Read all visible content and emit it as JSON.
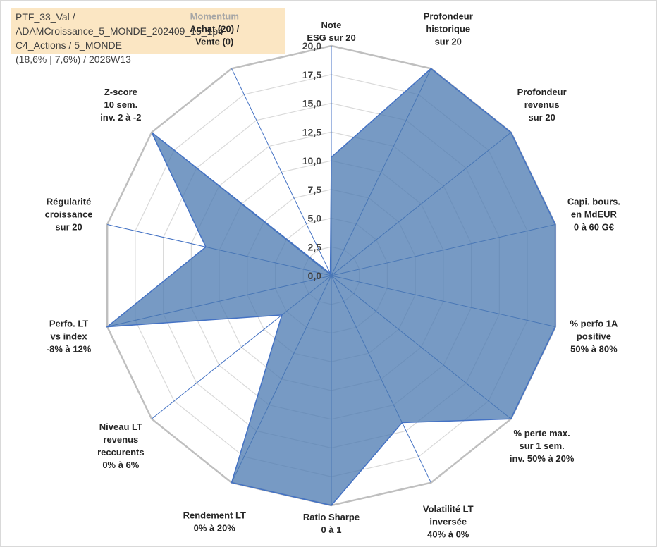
{
  "info_box": {
    "line1": "PTF_33_Val / ADAMCroissance_5_MONDE_202409_15_1p4",
    "line2": "C4_Actions / 5_MONDE",
    "line3": "(18,6% | 7,6%) / 2026W13"
  },
  "chart_data": {
    "type": "radar",
    "rmin": 0,
    "rmax": 20,
    "tick_values": [
      0,
      2.5,
      5,
      7.5,
      10,
      12.5,
      15,
      17.5,
      20
    ],
    "tick_labels": [
      "0,0",
      "2,5",
      "5,0",
      "7,5",
      "10,0",
      "12,5",
      "15,0",
      "17,5",
      "20,0"
    ],
    "categories": [
      {
        "lines": [
          "Note",
          "ESG sur 20"
        ]
      },
      {
        "lines": [
          "Profondeur",
          "historique",
          "sur 20"
        ]
      },
      {
        "lines": [
          "Profondeur",
          "revenus",
          "sur 20"
        ]
      },
      {
        "lines": [
          "Capi. bours.",
          "en MdEUR",
          "0 à 60 G€"
        ]
      },
      {
        "lines": [
          "% perfo 1A",
          "positive",
          "50% à 80%"
        ]
      },
      {
        "lines": [
          "% perte max.",
          "sur 1 sem.",
          "inv. 50% à 20%"
        ]
      },
      {
        "lines": [
          "Volatilité LT",
          "inversée",
          "40% à 0%"
        ]
      },
      {
        "lines": [
          "Ratio Sharpe",
          "0 à 1"
        ]
      },
      {
        "lines": [
          "Rendement LT",
          "0% à 20%"
        ]
      },
      {
        "lines": [
          "Niveau LT",
          "revenus",
          "reccurents",
          "0% à 6%"
        ]
      },
      {
        "lines": [
          "Perfo. LT",
          "vs index",
          "-8% à 12%"
        ]
      },
      {
        "lines": [
          "Régularité",
          "croissance",
          "sur 20"
        ]
      },
      {
        "lines": [
          "Z-score",
          "10 sem.",
          "inv. 2 à -2"
        ]
      },
      {
        "lines": [
          "Momentum",
          "Achat (20) /",
          "Vente (0)"
        ],
        "first_line_color": "#a6a6a6"
      }
    ],
    "series": [
      {
        "values": [
          10.3,
          20,
          20,
          20,
          20,
          20,
          14.2,
          20,
          20,
          5.5,
          20,
          11.2,
          20,
          0.2
        ],
        "color": "#4472c4"
      }
    ],
    "grid": true,
    "legend": "none"
  }
}
